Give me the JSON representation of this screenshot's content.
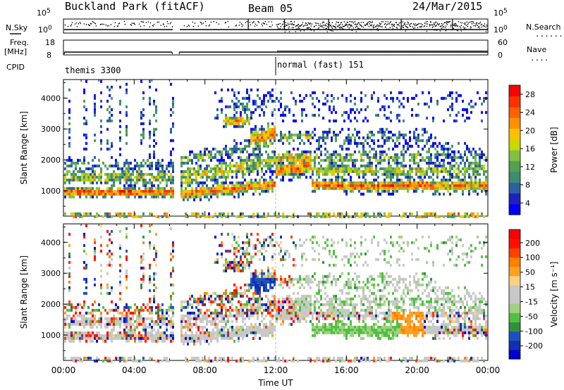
{
  "header": {
    "title_left": "Buckland Park (fitACF)",
    "title_mid": "Beam 05",
    "title_right": "24/Mar/2015"
  },
  "labels": {
    "nsky": "N.Sky",
    "nsearch": "N.Search",
    "freq": "Freq.",
    "mhz": "[MHz]",
    "nave": "Nave",
    "cpid": "CPID",
    "nsky_ticks": [
      "10^5",
      "10^0"
    ],
    "nsearch_ticks": [
      "10^5",
      "10^0"
    ],
    "freq_ticks": [
      "18",
      "8"
    ],
    "nave_ticks": [
      "60",
      "0"
    ],
    "program_1": "themis 3300",
    "program_2": "normal (fast) 151"
  },
  "chart_data": [
    {
      "type": "heatmap",
      "panel": "power",
      "ylabel": "Slant Range [km]",
      "ylim": [
        180,
        4600
      ],
      "yticks": [
        "1000",
        "2000",
        "3000",
        "4000"
      ],
      "xticks": [
        "00:00",
        "04:00",
        "08:00",
        "12:00",
        "16:00",
        "20:00",
        "00:00"
      ],
      "colorbar": {
        "label": "Power [dB]",
        "ticks": [
          "28",
          "24",
          "20",
          "16",
          "12",
          "8",
          "4"
        ],
        "colors": [
          "#0000ff",
          "#2020c0",
          "#2a62a0",
          "#3c8c70",
          "#52a050",
          "#80c040",
          "#c8d800",
          "#ffc000",
          "#ff9000",
          "#ff6000",
          "#ff3000",
          "#ff0000"
        ]
      }
    },
    {
      "type": "heatmap",
      "panel": "velocity",
      "ylabel": "Slant Range [km]",
      "ylim": [
        180,
        4600
      ],
      "yticks": [
        "1000",
        "2000",
        "3000",
        "4000"
      ],
      "xticks": [
        "00:00",
        "04:00",
        "08:00",
        "12:00",
        "16:00",
        "20:00",
        "00:00"
      ],
      "xlabel": "Time UT",
      "colorbar": {
        "label": "Velocity [m s⁻¹]",
        "ticks": [
          "200",
          "100",
          "50",
          "15",
          "-15",
          "-50",
          "-100",
          "-200"
        ],
        "colors": [
          "#0000d0",
          "#1030b0",
          "#2050c0",
          "#309040",
          "#50c040",
          "#a0d080",
          "#c8c8c8",
          "#c8c8c8",
          "#ffd080",
          "#ffa020",
          "#ff8000",
          "#ff4000",
          "#ff1000",
          "#ff0000"
        ]
      }
    }
  ]
}
